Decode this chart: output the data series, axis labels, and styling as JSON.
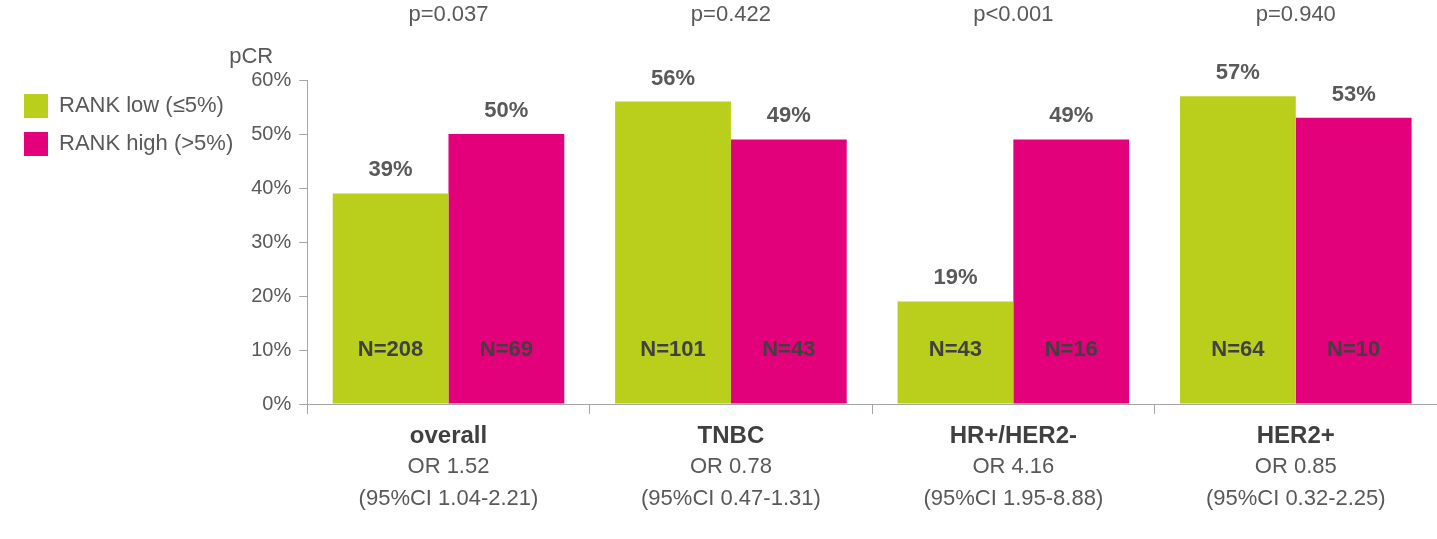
{
  "chart_data": {
    "type": "bar",
    "ylabel": "pCR",
    "categories": [
      "overall\nOR 1.52\n(95%CI 1.04-2.21)",
      "TNBC\nOR 0.78\n(95%CI 0.47-1.31)",
      "HR+/HER2-\nOR 4.16\n(95%CI 1.95-8.88)",
      "HER2+\nOR 0.85\n(95%CI 0.32-2.25)"
    ],
    "series": [
      {
        "name": "RANK low (≤5%)",
        "color": "#b9cf1c",
        "values": [
          39,
          56,
          19,
          57
        ],
        "value_labels": [
          "39%",
          "56%",
          "19%",
          "57%"
        ]
      },
      {
        "name": "RANK high (>5%)",
        "color": "#e3007b",
        "values": [
          50,
          49,
          49,
          53
        ],
        "value_labels": [
          "50%",
          "49%",
          "49%",
          "53%"
        ]
      }
    ],
    "ylim": [
      0,
      60
    ],
    "yticks": [
      {
        "value": 0,
        "label": "0%"
      },
      {
        "value": 10,
        "label": "10%"
      },
      {
        "value": 20,
        "label": "20%"
      },
      {
        "value": 30,
        "label": "30%"
      },
      {
        "value": 40,
        "label": "40%"
      },
      {
        "value": 50,
        "label": "50%"
      },
      {
        "value": 60,
        "label": "60%"
      }
    ],
    "grid": false,
    "legend": "top left",
    "annotations": [
      "p=0.037",
      "p=0.422",
      "p<0.001",
      "p=0.940",
      {
        "text": "N=208",
        "x": "overall\nOR 1.52\n(95%CI 1.04-2.21)",
        "y": 10
      },
      {
        "text": "N=69",
        "x": "overall\nOR 1.52\n(95%CI 1.04-2.21)",
        "y": 10
      },
      {
        "text": "N=101",
        "x": "TNBC\nOR 0.78\n(95%CI 0.47-1.31)",
        "y": 10
      },
      {
        "text": "N=43",
        "x": "TNBC\nOR 0.78\n(95%CI 0.47-1.31)",
        "y": 10
      },
      {
        "text": "N=43",
        "x": "HR+/HER2-\nOR 4.16\n(95%CI 1.95-8.88)",
        "y": 10
      },
      {
        "text": "N=16",
        "x": "HR+/HER2-\nOR 4.16\n(95%CI 1.95-8.88)",
        "y": 10
      },
      {
        "text": "N=64",
        "x": "HER2+\nOR 0.85\n(95%CI 0.32-2.25)",
        "y": 10
      },
      {
        "text": "N=10",
        "x": "HER2+\nOR 0.85\n(95%CI 0.32-2.25)",
        "y": 10
      }
    ]
  }
}
